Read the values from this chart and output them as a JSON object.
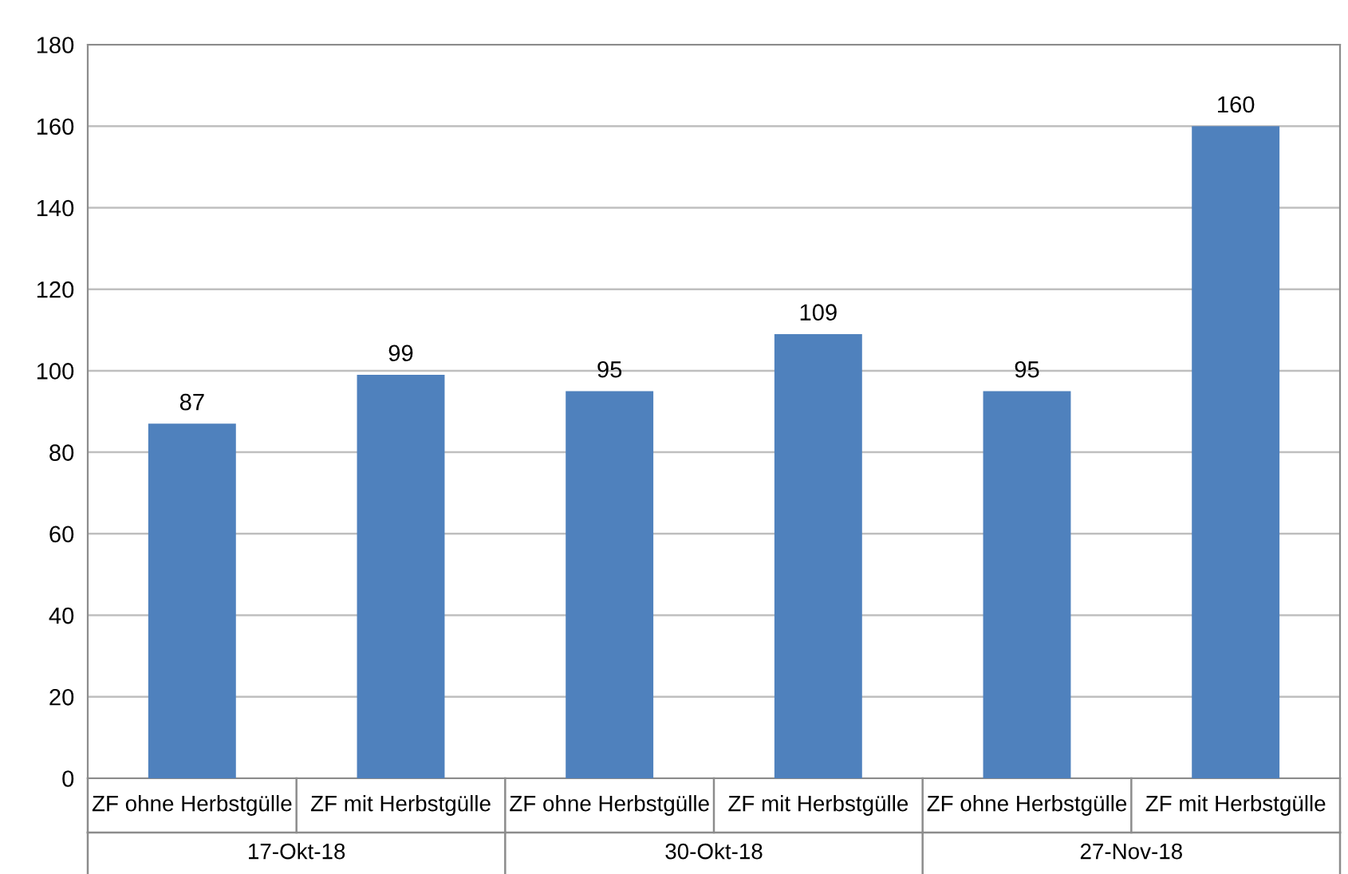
{
  "chart_data": {
    "type": "bar",
    "categories": [
      "ZF ohne Herbstgülle",
      "ZF mit Herbstgülle",
      "ZF ohne Herbstgülle",
      "ZF mit Herbstgülle",
      "ZF ohne Herbstgülle",
      "ZF mit Herbstgülle"
    ],
    "values": [
      87,
      99,
      95,
      109,
      95,
      160
    ],
    "color": "#4f81bd",
    "ylim": [
      0,
      180
    ],
    "yticks": [
      0,
      20,
      40,
      60,
      80,
      100,
      120,
      140,
      160,
      180
    ],
    "grid": "y",
    "data_labels": true,
    "annotations": [
      "17-Okt-18",
      "30-Okt-18",
      "27-Nov-18"
    ]
  }
}
